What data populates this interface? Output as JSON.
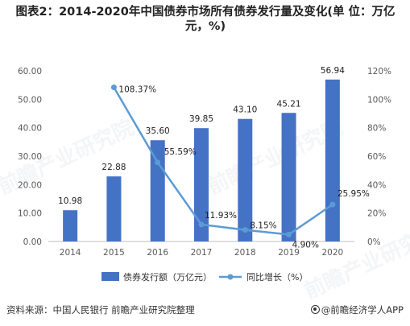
{
  "title": "图表2：2014-2020年中国债券市场所有债券发行量及变化(单 位：万亿元，%)",
  "source": "资料来源：中国人民银行 前瞻产业研究院整理",
  "brand": "@前瞻经济学人APP",
  "watermark": "前瞻产业研究院",
  "colors": {
    "bar": "#4472C4",
    "line": "#5B9BD5",
    "axis": "#595959",
    "grid": "#D9D9D9"
  },
  "chart_data": {
    "type": "bar",
    "categories": [
      "2014",
      "2015",
      "2016",
      "2017",
      "2018",
      "2019",
      "2020"
    ],
    "series": [
      {
        "name": "债券发行额（万亿元）",
        "type": "bar",
        "axis": "left",
        "values": [
          10.98,
          22.88,
          35.6,
          39.85,
          43.1,
          45.21,
          56.94
        ],
        "labels": [
          "10.98",
          "22.88",
          "35.60",
          "39.85",
          "43.10",
          "45.21",
          "56.94"
        ]
      },
      {
        "name": "同比增长（%）",
        "type": "line",
        "axis": "right",
        "values": [
          null,
          108.37,
          55.59,
          11.93,
          8.15,
          4.9,
          25.95
        ],
        "labels": [
          "",
          "108.37%",
          "55.59%",
          "11.93%",
          "8.15%",
          "4.90%",
          "25.95%"
        ]
      }
    ],
    "y_left": {
      "min": 0,
      "max": 60,
      "ticks": [
        "0.00",
        "10.00",
        "20.00",
        "30.00",
        "40.00",
        "50.00",
        "60.00"
      ]
    },
    "y_right": {
      "min": 0,
      "max": 120,
      "ticks": [
        "0%",
        "20%",
        "40%",
        "60%",
        "80%",
        "100%",
        "120%"
      ]
    },
    "grid": false,
    "legend": "bottom"
  }
}
